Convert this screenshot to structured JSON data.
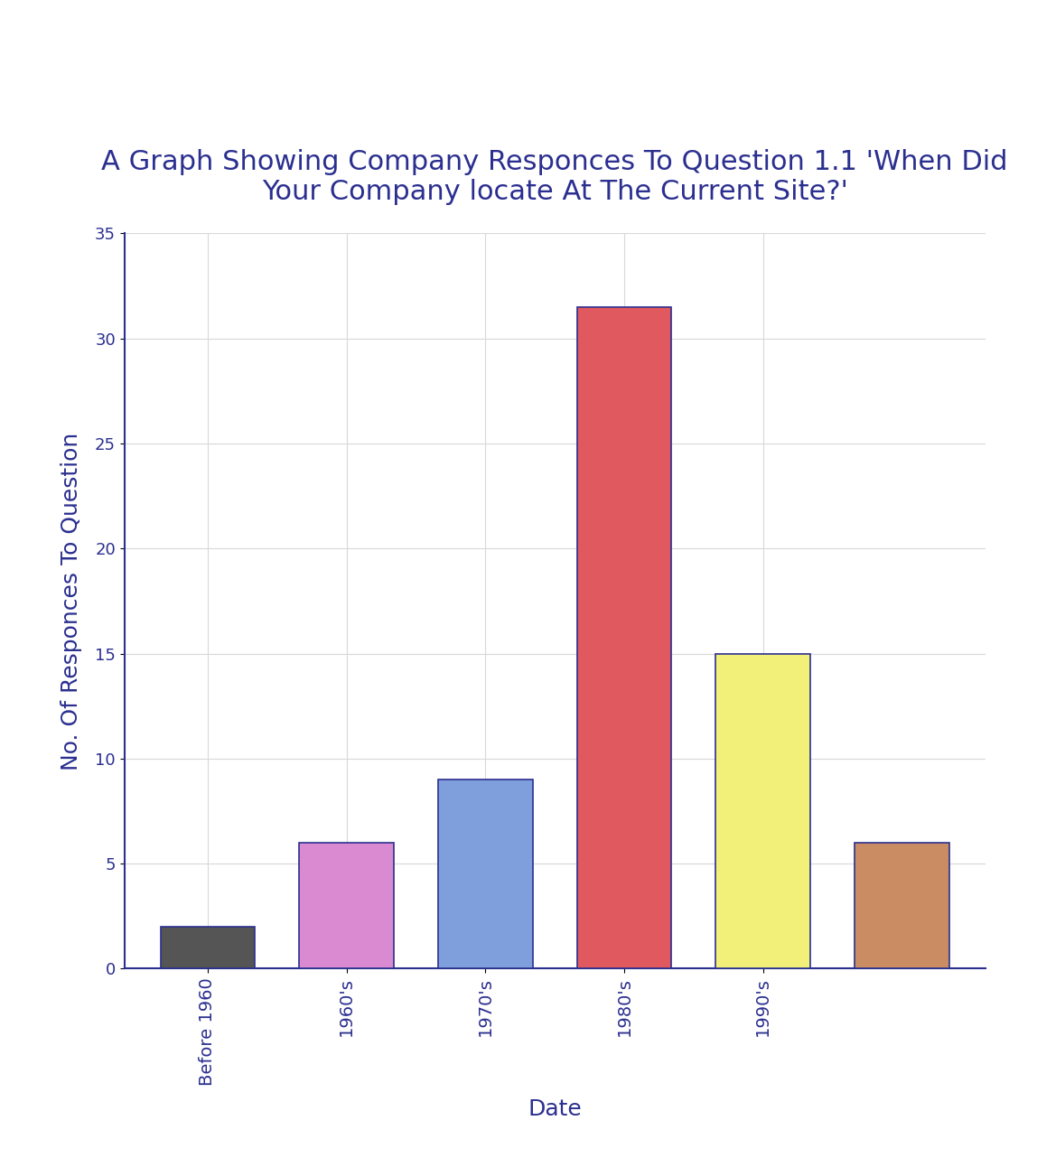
{
  "chart_data": {
    "type": "bar",
    "title": "A Graph Showing Company Responces To Question 1.1 'When Did Your Company locate At The Current Site?'",
    "x_label": "Date",
    "y_label": "No. Of Responces To Question",
    "categories": [
      "Before 1960",
      "1960's",
      "1970's",
      "1980's",
      "1990's",
      null
    ],
    "values": [
      2,
      6,
      9,
      31.5,
      15,
      6
    ],
    "colors": [
      "#555555",
      "#d98ad0",
      "#7f9fdc",
      "#e0595f",
      "#f3f07a",
      "#c98c63"
    ],
    "ylim": [
      0,
      35
    ],
    "yticks": [
      0,
      5,
      10,
      15,
      20,
      25,
      30,
      35
    ],
    "grid": true
  }
}
